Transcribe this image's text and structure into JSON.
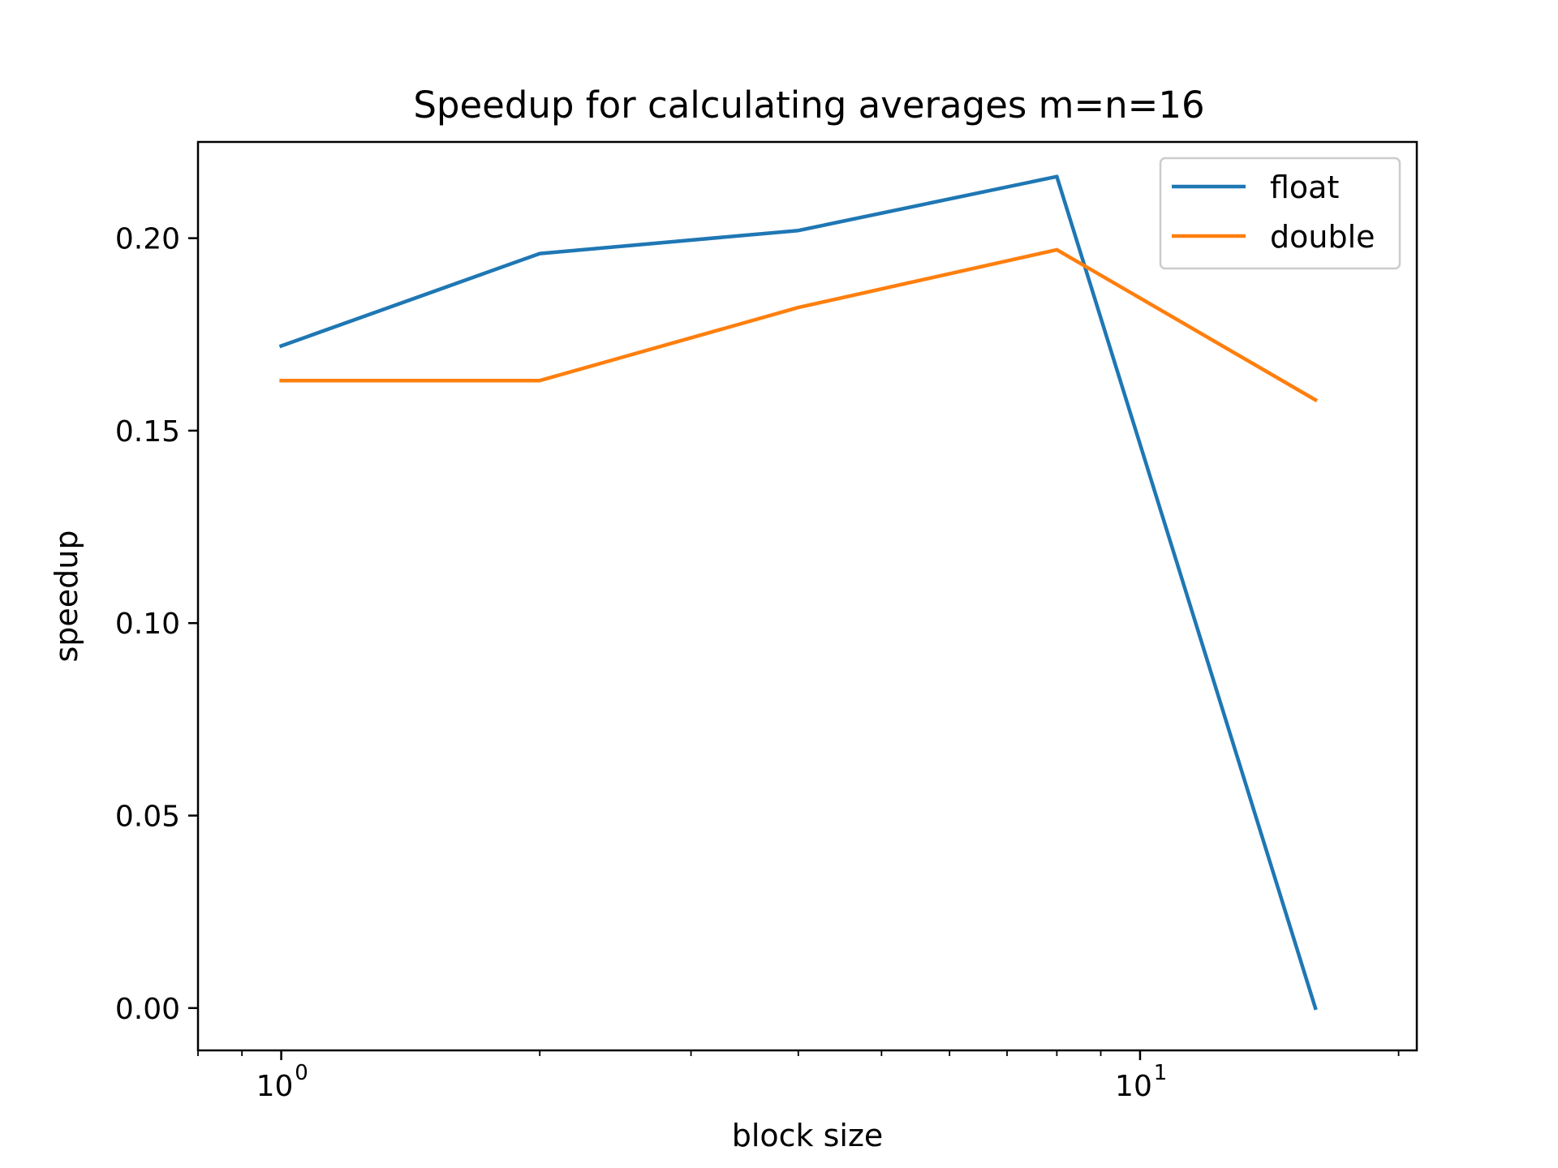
{
  "chart_data": {
    "type": "line",
    "title": "Speedup for calculating averages m=n=16",
    "xlabel": "block size",
    "ylabel": "speedup",
    "xscale": "log",
    "xlim": [
      0.8,
      21
    ],
    "ylim": [
      -0.011,
      0.225
    ],
    "x": [
      1,
      2,
      4,
      8,
      16
    ],
    "series": [
      {
        "name": "float",
        "color": "#1f77b4",
        "values": [
          0.172,
          0.196,
          0.202,
          0.216,
          0.0
        ]
      },
      {
        "name": "double",
        "color": "#ff7f0e",
        "values": [
          0.163,
          0.163,
          0.182,
          0.197,
          0.158
        ]
      }
    ],
    "yticks": [
      {
        "value": 0.0,
        "label": "0.00"
      },
      {
        "value": 0.05,
        "label": "0.05"
      },
      {
        "value": 0.1,
        "label": "0.10"
      },
      {
        "value": 0.15,
        "label": "0.15"
      },
      {
        "value": 0.2,
        "label": "0.20"
      }
    ],
    "xticks": [
      {
        "value": 1,
        "base": "10",
        "exp": "0"
      },
      {
        "value": 10,
        "base": "10",
        "exp": "1"
      }
    ],
    "grid": false,
    "legend": "top-right"
  }
}
